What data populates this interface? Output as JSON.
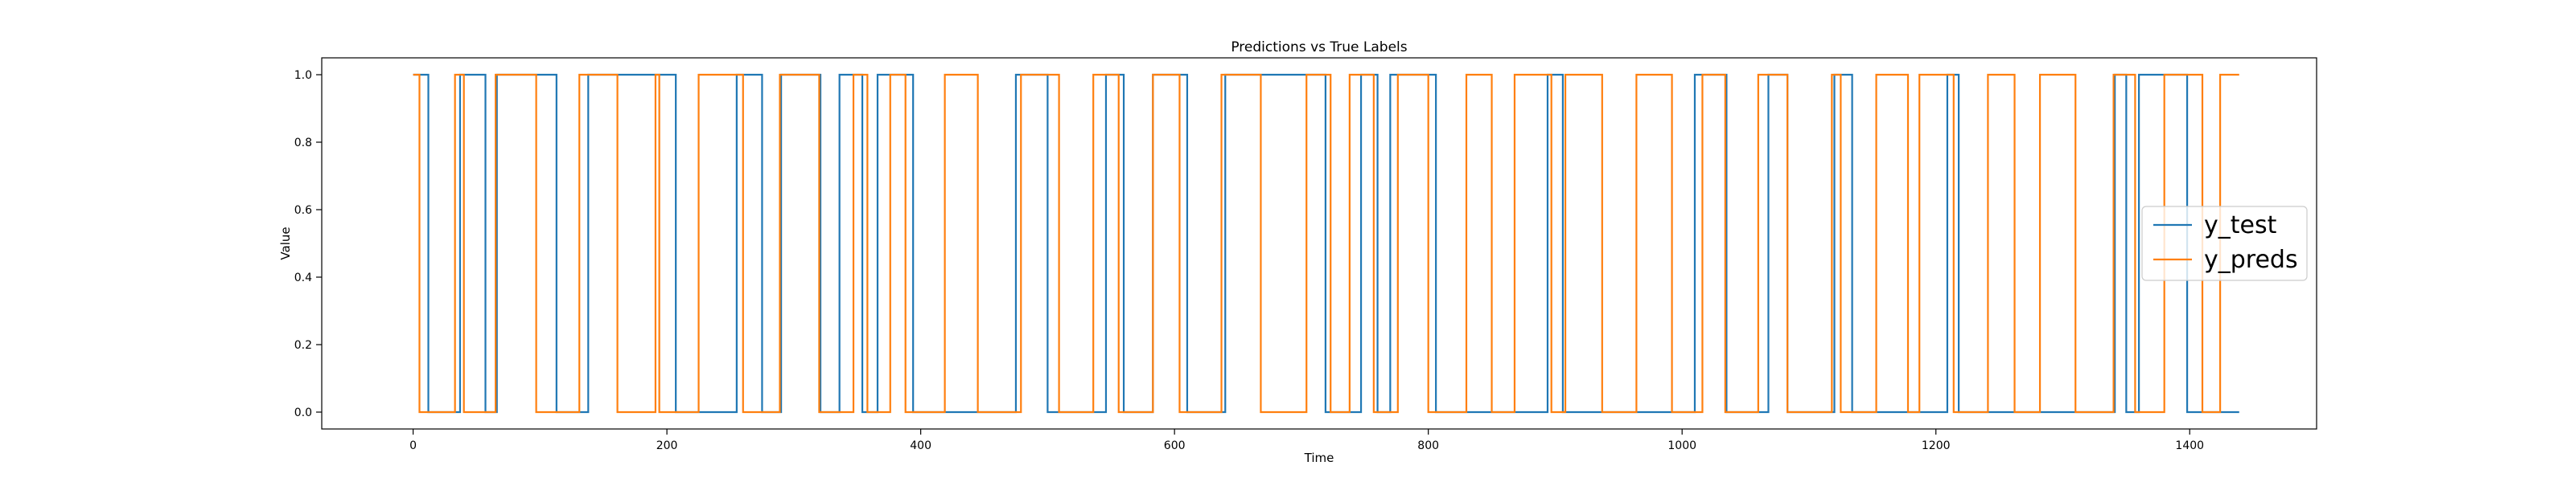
{
  "chart_data": {
    "type": "line",
    "title": "Predictions vs True Labels",
    "xlabel": "Time",
    "ylabel": "Value",
    "xlim": [
      -72,
      1500
    ],
    "ylim": [
      -0.05,
      1.05
    ],
    "xticks": [
      0,
      200,
      400,
      600,
      800,
      1000,
      1200,
      1400
    ],
    "yticks": [
      0.0,
      0.2,
      0.4,
      0.6,
      0.8,
      1.0
    ],
    "xtick_labels": [
      "0",
      "200",
      "400",
      "600",
      "800",
      "1000",
      "1200",
      "1400"
    ],
    "ytick_labels": [
      "0.0",
      "0.2",
      "0.4",
      "0.6",
      "0.8",
      "1.0"
    ],
    "grid": false,
    "legend": "center-right",
    "x_end": 1439,
    "series": [
      {
        "name": "y_test",
        "color": "#1f77b4",
        "transitions": [
          [
            0,
            1
          ],
          [
            12,
            0
          ],
          [
            37,
            1
          ],
          [
            57,
            0
          ],
          [
            66,
            1
          ],
          [
            113,
            0
          ],
          [
            138,
            1
          ],
          [
            207,
            0
          ],
          [
            255,
            1
          ],
          [
            275,
            0
          ],
          [
            290,
            1
          ],
          [
            321,
            0
          ],
          [
            336,
            1
          ],
          [
            354,
            0
          ],
          [
            366,
            1
          ],
          [
            394,
            0
          ],
          [
            475,
            1
          ],
          [
            500,
            0
          ],
          [
            546,
            1
          ],
          [
            560,
            0
          ],
          [
            583,
            1
          ],
          [
            610,
            0
          ],
          [
            640,
            1
          ],
          [
            719,
            0
          ],
          [
            747,
            1
          ],
          [
            760,
            0
          ],
          [
            770,
            1
          ],
          [
            806,
            0
          ],
          [
            894,
            1
          ],
          [
            906,
            0
          ],
          [
            1010,
            1
          ],
          [
            1035,
            0
          ],
          [
            1068,
            1
          ],
          [
            1083,
            0
          ],
          [
            1120,
            1
          ],
          [
            1134,
            0
          ],
          [
            1209,
            1
          ],
          [
            1218,
            0
          ],
          [
            1341,
            1
          ],
          [
            1350,
            0
          ],
          [
            1360,
            1
          ],
          [
            1398,
            0
          ]
        ]
      },
      {
        "name": "y_preds",
        "color": "#ff7f0e",
        "transitions": [
          [
            0,
            1
          ],
          [
            5,
            0
          ],
          [
            33,
            1
          ],
          [
            40,
            0
          ],
          [
            65,
            1
          ],
          [
            97,
            0
          ],
          [
            131,
            1
          ],
          [
            161,
            0
          ],
          [
            191,
            1
          ],
          [
            194,
            0
          ],
          [
            225,
            1
          ],
          [
            260,
            0
          ],
          [
            289,
            1
          ],
          [
            320,
            0
          ],
          [
            347,
            1
          ],
          [
            358,
            0
          ],
          [
            376,
            1
          ],
          [
            388,
            0
          ],
          [
            419,
            1
          ],
          [
            445,
            0
          ],
          [
            479,
            1
          ],
          [
            509,
            0
          ],
          [
            536,
            1
          ],
          [
            556,
            0
          ],
          [
            583,
            1
          ],
          [
            604,
            0
          ],
          [
            637,
            1
          ],
          [
            668,
            0
          ],
          [
            704,
            1
          ],
          [
            723,
            0
          ],
          [
            738,
            1
          ],
          [
            757,
            0
          ],
          [
            776,
            1
          ],
          [
            800,
            0
          ],
          [
            830,
            1
          ],
          [
            850,
            0
          ],
          [
            868,
            1
          ],
          [
            897,
            0
          ],
          [
            908,
            1
          ],
          [
            937,
            0
          ],
          [
            964,
            1
          ],
          [
            992,
            0
          ],
          [
            1016,
            1
          ],
          [
            1034,
            0
          ],
          [
            1060,
            1
          ],
          [
            1083,
            0
          ],
          [
            1118,
            1
          ],
          [
            1125,
            0
          ],
          [
            1153,
            1
          ],
          [
            1178,
            0
          ],
          [
            1187,
            1
          ],
          [
            1214,
            0
          ],
          [
            1241,
            1
          ],
          [
            1262,
            0
          ],
          [
            1282,
            1
          ],
          [
            1310,
            0
          ],
          [
            1340,
            1
          ],
          [
            1357,
            0
          ],
          [
            1380,
            1
          ],
          [
            1410,
            0
          ],
          [
            1424,
            1
          ]
        ]
      }
    ]
  }
}
